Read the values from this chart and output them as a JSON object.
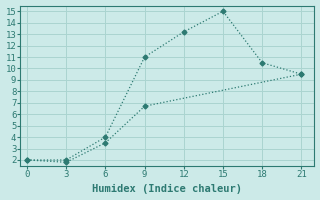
{
  "xlabel": "Humidex (Indice chaleur)",
  "bg_color": "#cceae8",
  "line_color": "#2d7a72",
  "grid_color": "#aad4d0",
  "line1_x": [
    0,
    3,
    6,
    9,
    12,
    15,
    18,
    21
  ],
  "line1_y": [
    2,
    2,
    4,
    11,
    13.2,
    15,
    10.5,
    9.5
  ],
  "line2_x": [
    0,
    3,
    6,
    9,
    21
  ],
  "line2_y": [
    2,
    1.8,
    3.5,
    6.7,
    9.5
  ],
  "xlim": [
    -0.5,
    22
  ],
  "ylim": [
    1.5,
    15.5
  ],
  "xticks": [
    0,
    3,
    6,
    9,
    12,
    15,
    18,
    21
  ],
  "yticks": [
    2,
    3,
    4,
    5,
    6,
    7,
    8,
    9,
    10,
    11,
    12,
    13,
    14,
    15
  ],
  "tick_fontsize": 6.5,
  "xlabel_fontsize": 7.5,
  "marker": "D",
  "markersize": 2.5,
  "linewidth": 0.9
}
